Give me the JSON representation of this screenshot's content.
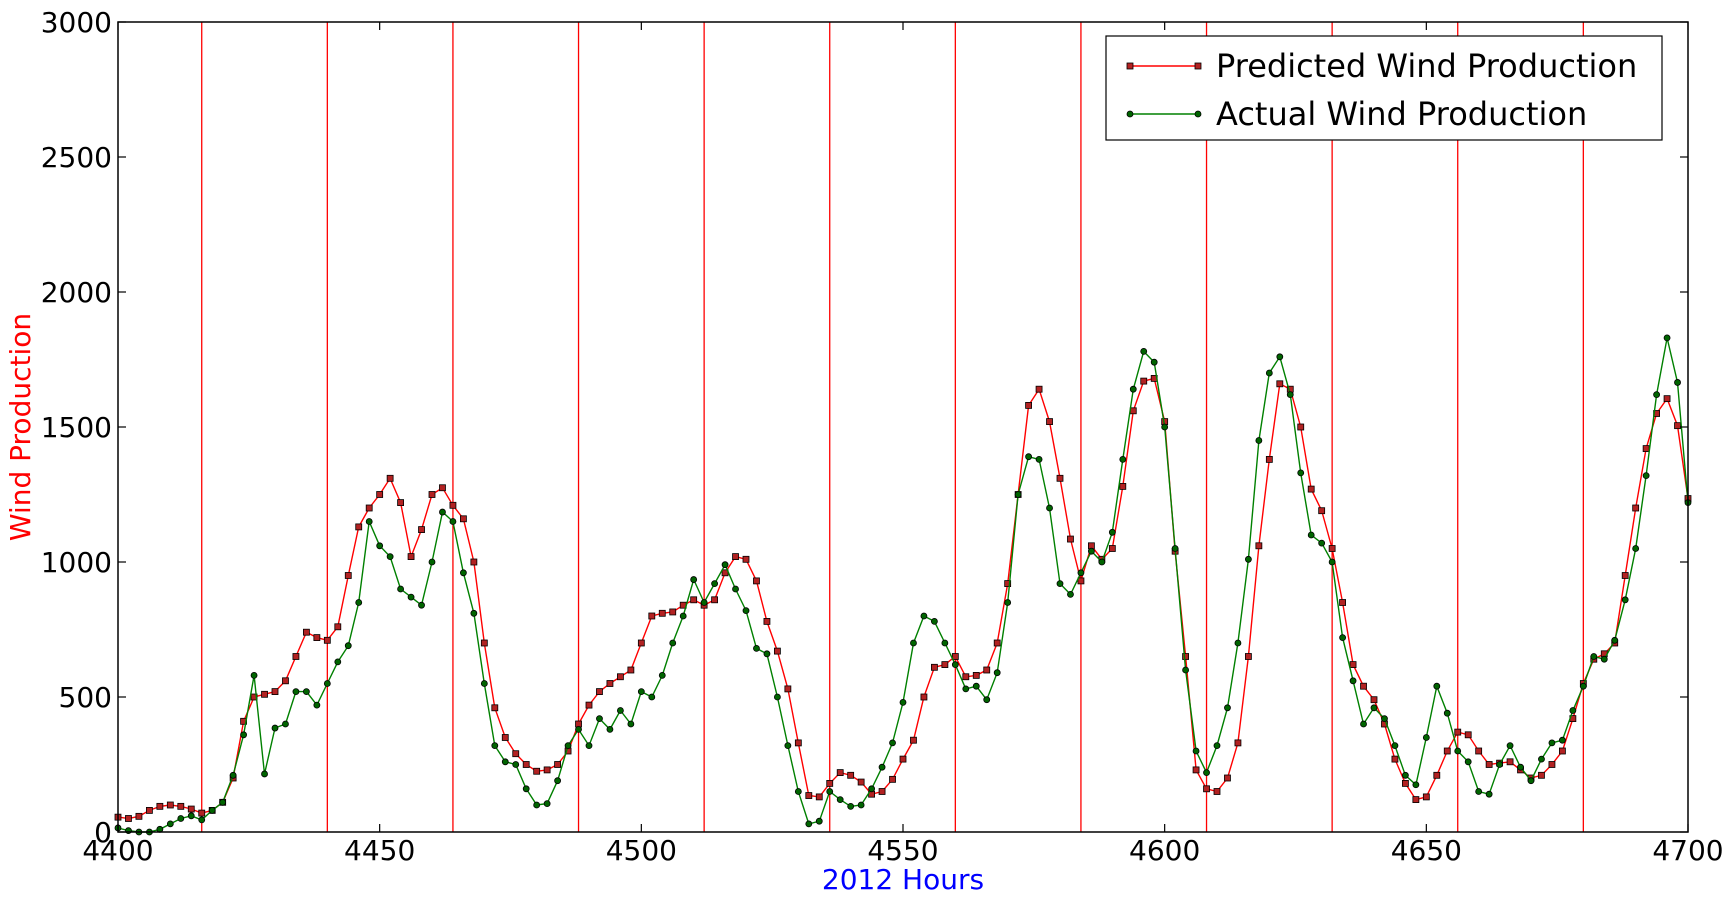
{
  "chart_data": {
    "type": "line",
    "xlabel": "2012 Hours",
    "ylabel": "Wind Production",
    "xlabel_color": "#0000ff",
    "ylabel_color": "#ff0000",
    "xlim": [
      4400,
      4700
    ],
    "ylim": [
      0,
      3000
    ],
    "xticks": [
      4400,
      4450,
      4500,
      4550,
      4600,
      4650,
      4700
    ],
    "yticks": [
      0,
      500,
      1000,
      1500,
      2000,
      2500,
      3000
    ],
    "grid": false,
    "legend_position": "top-right",
    "vlines": [
      4416,
      4440,
      4464,
      4488,
      4512,
      4536,
      4560,
      4584,
      4608,
      4632,
      4656,
      4680
    ],
    "vline_color": "#ff0000",
    "series": [
      {
        "name": "Predicted Wind Production",
        "color": "#ff0000",
        "marker": "square",
        "marker_fill": "#b22222",
        "points": [
          [
            4400,
            55
          ],
          [
            4402,
            50
          ],
          [
            4404,
            58
          ],
          [
            4406,
            80
          ],
          [
            4408,
            95
          ],
          [
            4410,
            100
          ],
          [
            4412,
            95
          ],
          [
            4414,
            85
          ],
          [
            4416,
            70
          ],
          [
            4418,
            80
          ],
          [
            4420,
            110
          ],
          [
            4422,
            200
          ],
          [
            4424,
            410
          ],
          [
            4426,
            500
          ],
          [
            4428,
            510
          ],
          [
            4430,
            520
          ],
          [
            4432,
            560
          ],
          [
            4434,
            650
          ],
          [
            4436,
            740
          ],
          [
            4438,
            720
          ],
          [
            4440,
            710
          ],
          [
            4442,
            760
          ],
          [
            4444,
            950
          ],
          [
            4446,
            1130
          ],
          [
            4448,
            1200
          ],
          [
            4450,
            1250
          ],
          [
            4452,
            1310
          ],
          [
            4454,
            1220
          ],
          [
            4456,
            1020
          ],
          [
            4458,
            1120
          ],
          [
            4460,
            1250
          ],
          [
            4462,
            1275
          ],
          [
            4464,
            1210
          ],
          [
            4466,
            1160
          ],
          [
            4468,
            1000
          ],
          [
            4470,
            700
          ],
          [
            4472,
            460
          ],
          [
            4474,
            350
          ],
          [
            4476,
            290
          ],
          [
            4478,
            250
          ],
          [
            4480,
            225
          ],
          [
            4482,
            230
          ],
          [
            4484,
            250
          ],
          [
            4486,
            300
          ],
          [
            4488,
            400
          ],
          [
            4490,
            470
          ],
          [
            4492,
            520
          ],
          [
            4494,
            550
          ],
          [
            4496,
            575
          ],
          [
            4498,
            600
          ],
          [
            4500,
            700
          ],
          [
            4502,
            800
          ],
          [
            4504,
            810
          ],
          [
            4506,
            815
          ],
          [
            4508,
            840
          ],
          [
            4510,
            860
          ],
          [
            4512,
            840
          ],
          [
            4514,
            860
          ],
          [
            4516,
            960
          ],
          [
            4518,
            1020
          ],
          [
            4520,
            1010
          ],
          [
            4522,
            930
          ],
          [
            4524,
            780
          ],
          [
            4526,
            670
          ],
          [
            4528,
            530
          ],
          [
            4530,
            330
          ],
          [
            4532,
            135
          ],
          [
            4534,
            130
          ],
          [
            4536,
            180
          ],
          [
            4538,
            220
          ],
          [
            4540,
            210
          ],
          [
            4542,
            185
          ],
          [
            4544,
            140
          ],
          [
            4546,
            150
          ],
          [
            4548,
            195
          ],
          [
            4550,
            270
          ],
          [
            4552,
            340
          ],
          [
            4554,
            500
          ],
          [
            4556,
            610
          ],
          [
            4558,
            620
          ],
          [
            4560,
            650
          ],
          [
            4562,
            575
          ],
          [
            4564,
            580
          ],
          [
            4566,
            600
          ],
          [
            4568,
            700
          ],
          [
            4570,
            920
          ],
          [
            4572,
            1250
          ],
          [
            4574,
            1580
          ],
          [
            4576,
            1640
          ],
          [
            4578,
            1520
          ],
          [
            4580,
            1310
          ],
          [
            4582,
            1085
          ],
          [
            4584,
            930
          ],
          [
            4586,
            1060
          ],
          [
            4588,
            1010
          ],
          [
            4590,
            1050
          ],
          [
            4592,
            1280
          ],
          [
            4594,
            1560
          ],
          [
            4596,
            1670
          ],
          [
            4598,
            1680
          ],
          [
            4600,
            1520
          ],
          [
            4602,
            1040
          ],
          [
            4604,
            650
          ],
          [
            4606,
            230
          ],
          [
            4608,
            160
          ],
          [
            4610,
            150
          ],
          [
            4612,
            200
          ],
          [
            4614,
            330
          ],
          [
            4616,
            650
          ],
          [
            4618,
            1060
          ],
          [
            4620,
            1380
          ],
          [
            4622,
            1660
          ],
          [
            4624,
            1640
          ],
          [
            4626,
            1500
          ],
          [
            4628,
            1270
          ],
          [
            4630,
            1190
          ],
          [
            4632,
            1050
          ],
          [
            4634,
            850
          ],
          [
            4636,
            620
          ],
          [
            4638,
            540
          ],
          [
            4640,
            490
          ],
          [
            4642,
            400
          ],
          [
            4644,
            270
          ],
          [
            4646,
            180
          ],
          [
            4648,
            120
          ],
          [
            4650,
            130
          ],
          [
            4652,
            210
          ],
          [
            4654,
            300
          ],
          [
            4656,
            370
          ],
          [
            4658,
            360
          ],
          [
            4660,
            300
          ],
          [
            4662,
            250
          ],
          [
            4664,
            255
          ],
          [
            4666,
            260
          ],
          [
            4668,
            230
          ],
          [
            4670,
            200
          ],
          [
            4672,
            210
          ],
          [
            4674,
            250
          ],
          [
            4676,
            300
          ],
          [
            4678,
            420
          ],
          [
            4680,
            550
          ],
          [
            4682,
            640
          ],
          [
            4684,
            660
          ],
          [
            4686,
            700
          ],
          [
            4688,
            950
          ],
          [
            4690,
            1200
          ],
          [
            4692,
            1420
          ],
          [
            4694,
            1550
          ],
          [
            4696,
            1605
          ],
          [
            4698,
            1505
          ],
          [
            4700,
            1235
          ]
        ]
      },
      {
        "name": "Actual Wind Production",
        "color": "#008000",
        "marker": "circle",
        "marker_fill": "#006400",
        "points": [
          [
            4400,
            15
          ],
          [
            4402,
            5
          ],
          [
            4404,
            0
          ],
          [
            4406,
            0
          ],
          [
            4408,
            10
          ],
          [
            4410,
            30
          ],
          [
            4412,
            50
          ],
          [
            4414,
            60
          ],
          [
            4416,
            45
          ],
          [
            4418,
            80
          ],
          [
            4420,
            110
          ],
          [
            4422,
            210
          ],
          [
            4424,
            360
          ],
          [
            4426,
            580
          ],
          [
            4428,
            215
          ],
          [
            4430,
            385
          ],
          [
            4432,
            400
          ],
          [
            4434,
            520
          ],
          [
            4436,
            520
          ],
          [
            4438,
            470
          ],
          [
            4440,
            550
          ],
          [
            4442,
            630
          ],
          [
            4444,
            690
          ],
          [
            4446,
            850
          ],
          [
            4448,
            1150
          ],
          [
            4450,
            1060
          ],
          [
            4452,
            1020
          ],
          [
            4454,
            900
          ],
          [
            4456,
            870
          ],
          [
            4458,
            840
          ],
          [
            4460,
            1000
          ],
          [
            4462,
            1185
          ],
          [
            4464,
            1150
          ],
          [
            4466,
            960
          ],
          [
            4468,
            810
          ],
          [
            4470,
            550
          ],
          [
            4472,
            320
          ],
          [
            4474,
            260
          ],
          [
            4476,
            250
          ],
          [
            4478,
            160
          ],
          [
            4480,
            100
          ],
          [
            4482,
            105
          ],
          [
            4484,
            190
          ],
          [
            4486,
            320
          ],
          [
            4488,
            380
          ],
          [
            4490,
            320
          ],
          [
            4492,
            420
          ],
          [
            4494,
            380
          ],
          [
            4496,
            450
          ],
          [
            4498,
            400
          ],
          [
            4500,
            520
          ],
          [
            4502,
            500
          ],
          [
            4504,
            580
          ],
          [
            4506,
            700
          ],
          [
            4508,
            800
          ],
          [
            4510,
            935
          ],
          [
            4512,
            850
          ],
          [
            4514,
            920
          ],
          [
            4516,
            990
          ],
          [
            4518,
            900
          ],
          [
            4520,
            820
          ],
          [
            4522,
            680
          ],
          [
            4524,
            660
          ],
          [
            4526,
            500
          ],
          [
            4528,
            320
          ],
          [
            4530,
            150
          ],
          [
            4532,
            30
          ],
          [
            4534,
            40
          ],
          [
            4536,
            150
          ],
          [
            4538,
            120
          ],
          [
            4540,
            95
          ],
          [
            4542,
            100
          ],
          [
            4544,
            160
          ],
          [
            4546,
            240
          ],
          [
            4548,
            330
          ],
          [
            4550,
            480
          ],
          [
            4552,
            700
          ],
          [
            4554,
            800
          ],
          [
            4556,
            780
          ],
          [
            4558,
            700
          ],
          [
            4560,
            620
          ],
          [
            4562,
            530
          ],
          [
            4564,
            540
          ],
          [
            4566,
            490
          ],
          [
            4568,
            590
          ],
          [
            4570,
            850
          ],
          [
            4572,
            1250
          ],
          [
            4574,
            1390
          ],
          [
            4576,
            1380
          ],
          [
            4578,
            1200
          ],
          [
            4580,
            920
          ],
          [
            4582,
            880
          ],
          [
            4584,
            960
          ],
          [
            4586,
            1040
          ],
          [
            4588,
            1000
          ],
          [
            4590,
            1110
          ],
          [
            4592,
            1380
          ],
          [
            4594,
            1640
          ],
          [
            4596,
            1780
          ],
          [
            4598,
            1740
          ],
          [
            4600,
            1500
          ],
          [
            4602,
            1050
          ],
          [
            4604,
            600
          ],
          [
            4606,
            300
          ],
          [
            4608,
            220
          ],
          [
            4610,
            320
          ],
          [
            4612,
            460
          ],
          [
            4614,
            700
          ],
          [
            4616,
            1010
          ],
          [
            4618,
            1450
          ],
          [
            4620,
            1700
          ],
          [
            4622,
            1760
          ],
          [
            4624,
            1620
          ],
          [
            4626,
            1330
          ],
          [
            4628,
            1100
          ],
          [
            4630,
            1070
          ],
          [
            4632,
            1000
          ],
          [
            4634,
            720
          ],
          [
            4636,
            560
          ],
          [
            4638,
            400
          ],
          [
            4640,
            460
          ],
          [
            4642,
            420
          ],
          [
            4644,
            320
          ],
          [
            4646,
            210
          ],
          [
            4648,
            175
          ],
          [
            4650,
            350
          ],
          [
            4652,
            540
          ],
          [
            4654,
            440
          ],
          [
            4656,
            300
          ],
          [
            4658,
            260
          ],
          [
            4660,
            150
          ],
          [
            4662,
            140
          ],
          [
            4664,
            250
          ],
          [
            4666,
            320
          ],
          [
            4668,
            240
          ],
          [
            4670,
            190
          ],
          [
            4672,
            270
          ],
          [
            4674,
            330
          ],
          [
            4676,
            340
          ],
          [
            4678,
            450
          ],
          [
            4680,
            540
          ],
          [
            4682,
            650
          ],
          [
            4684,
            640
          ],
          [
            4686,
            710
          ],
          [
            4688,
            860
          ],
          [
            4690,
            1050
          ],
          [
            4692,
            1320
          ],
          [
            4694,
            1620
          ],
          [
            4696,
            1830
          ],
          [
            4698,
            1665
          ],
          [
            4700,
            1220
          ]
        ]
      }
    ]
  }
}
